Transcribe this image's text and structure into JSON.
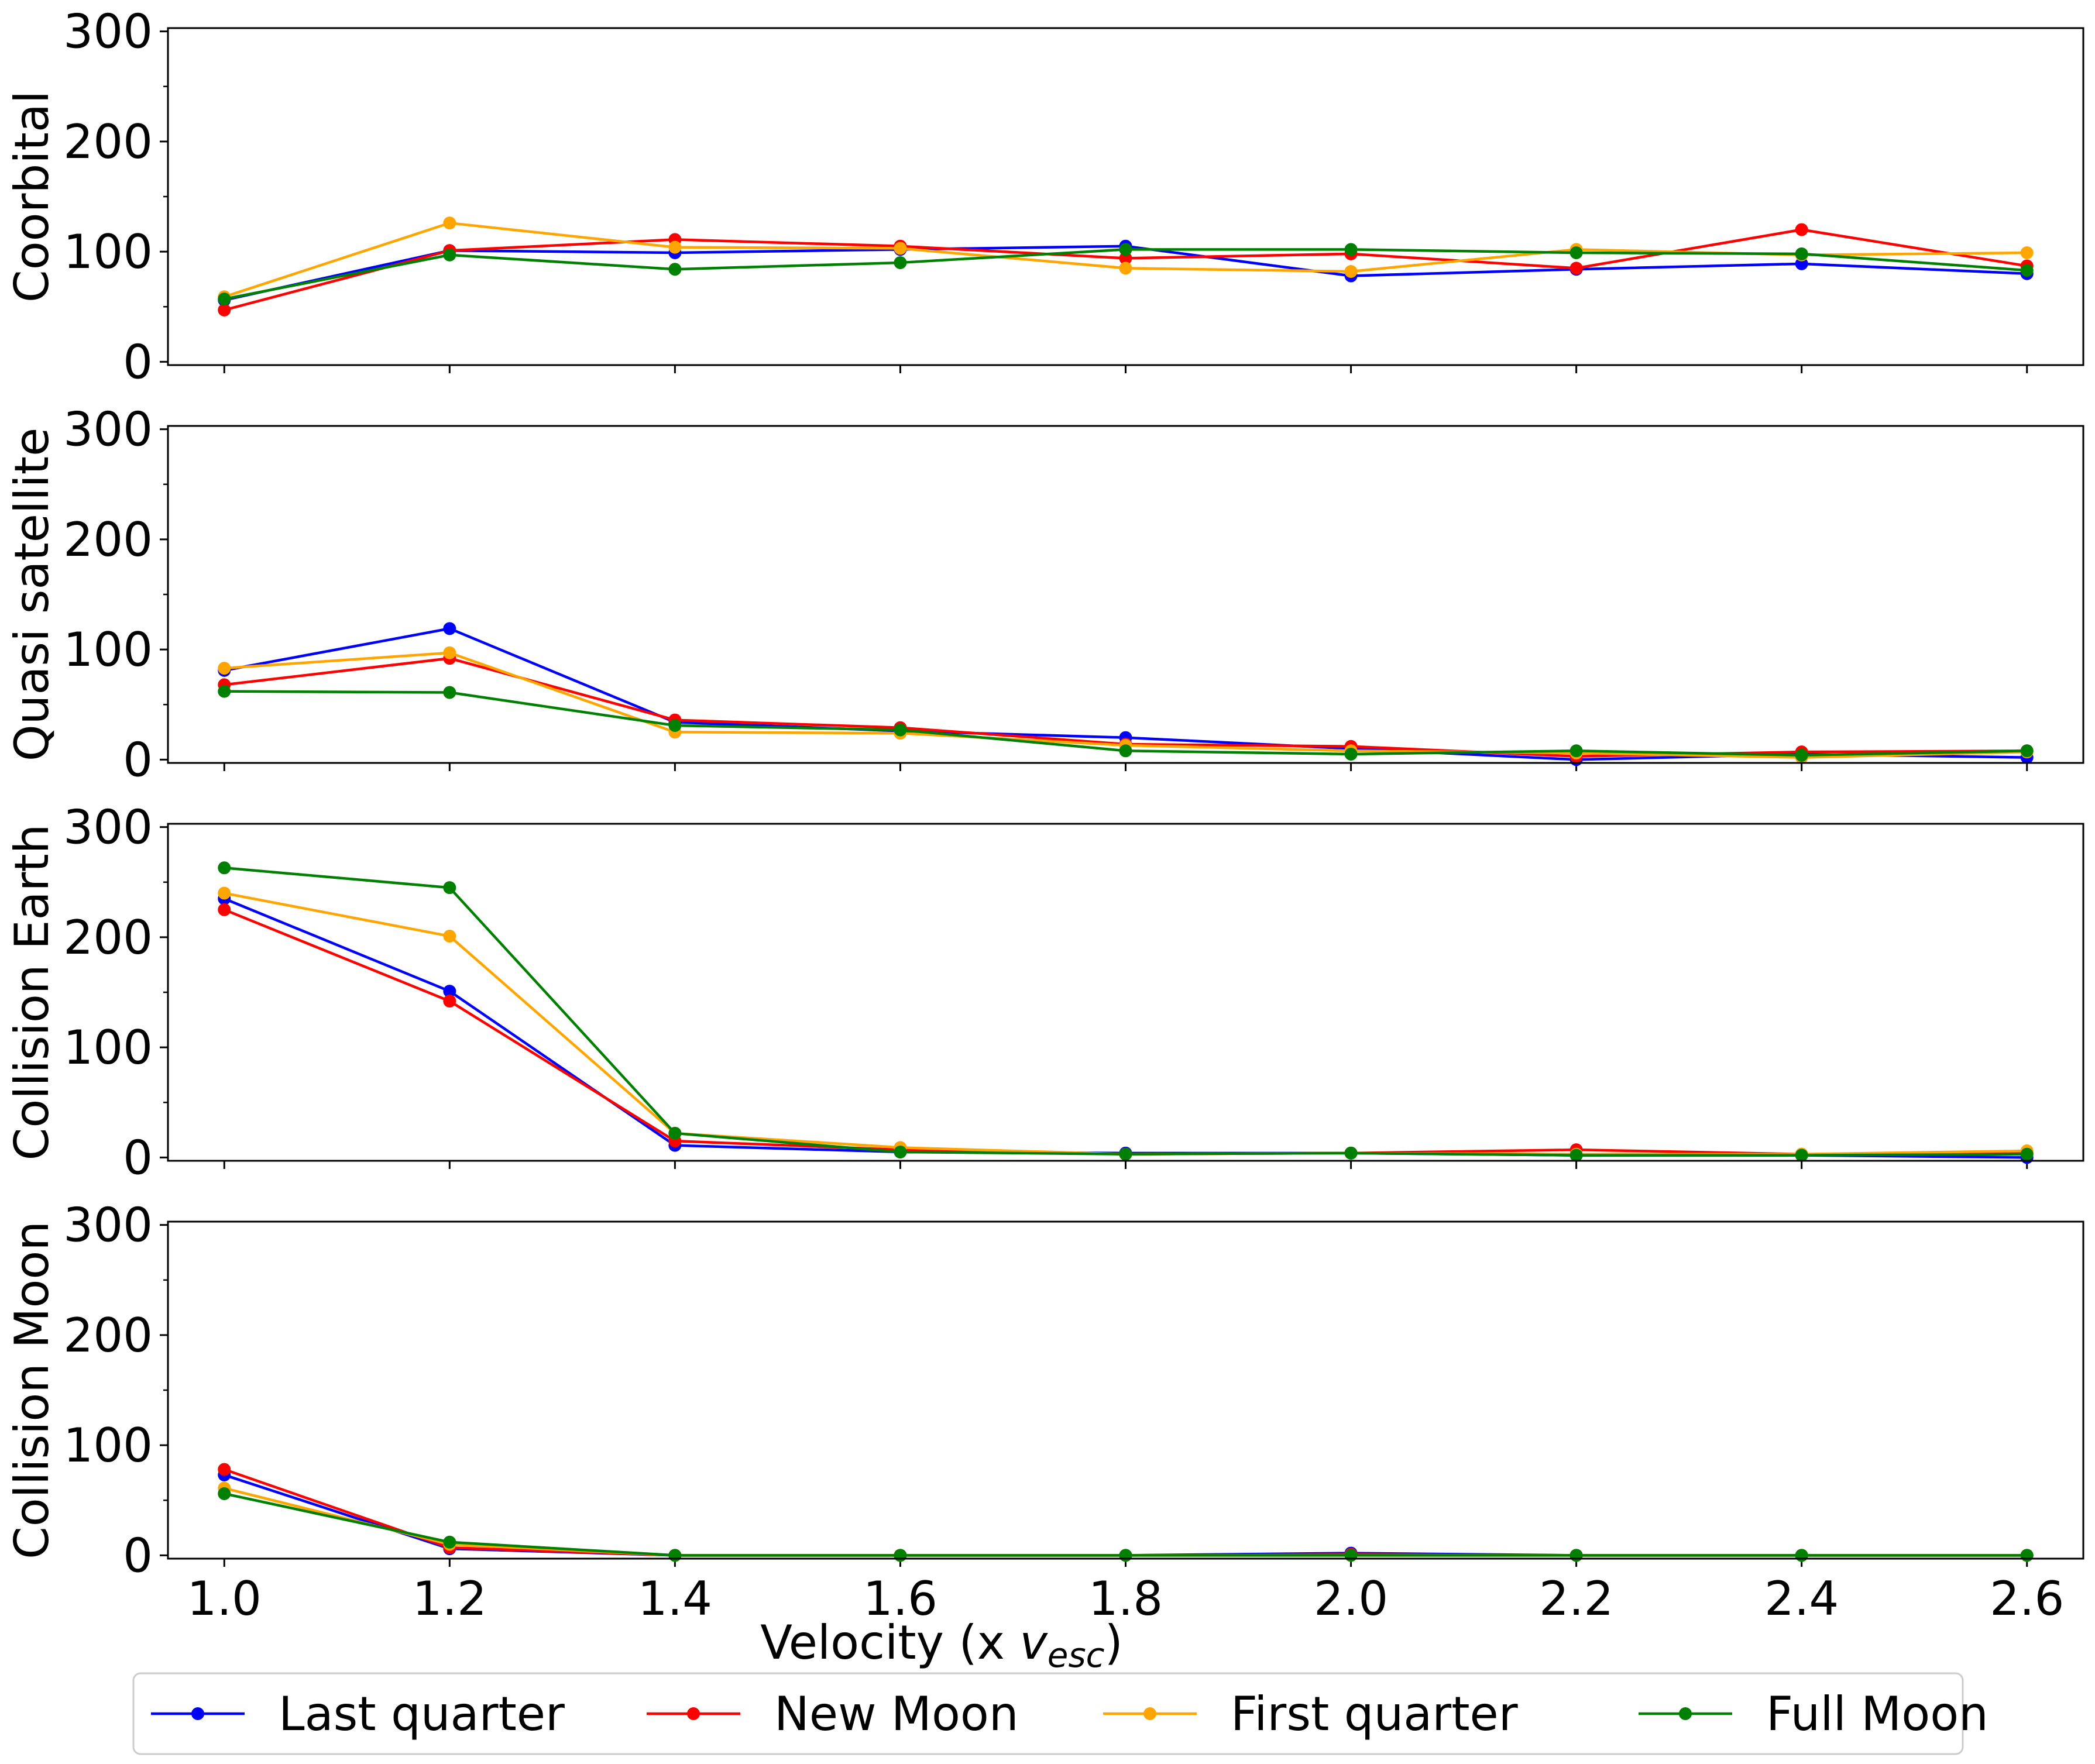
{
  "chart_data": {
    "type": "line",
    "xlabel": "Velocity (x ",
    "xlabel_var": "v",
    "xlabel_sub": "esc",
    "xlabel_end": ")",
    "x": [
      1.0,
      1.2,
      1.4,
      1.6,
      1.8,
      2.0,
      2.2,
      2.4,
      2.6
    ],
    "x_ticks": [
      "1.0",
      "1.2",
      "1.4",
      "1.6",
      "1.8",
      "2.0",
      "2.2",
      "2.4",
      "2.6"
    ],
    "xlim": [
      0.95,
      2.65
    ],
    "ylim": [
      -3,
      303
    ],
    "y_ticks": [
      "0",
      "100",
      "200",
      "300"
    ],
    "y_tick_values": [
      0,
      100,
      200,
      300
    ],
    "y_minor_tick_values": [
      50,
      150,
      250
    ],
    "grid": false,
    "legend_placement": "bottom-center",
    "series_colors": {
      "Last quarter": "#0000ff",
      "New Moon": "#ff0000",
      "First quarter": "#ffa500",
      "Full Moon": "#008000"
    },
    "legend": [
      "Last quarter",
      "New Moon",
      "First quarter",
      "Full Moon"
    ],
    "panels": [
      {
        "ylabel": "Coorbital",
        "series": [
          {
            "name": "Last quarter",
            "values": [
              56,
              101,
              99,
              102,
              105,
              78,
              84,
              89,
              80
            ]
          },
          {
            "name": "New Moon",
            "values": [
              47,
              101,
              111,
              105,
              94,
              98,
              85,
              120,
              87
            ]
          },
          {
            "name": "First quarter",
            "values": [
              59,
              126,
              104,
              103,
              85,
              82,
              102,
              97,
              99
            ]
          },
          {
            "name": "Full Moon",
            "values": [
              57,
              97,
              84,
              90,
              102,
              102,
              99,
              98,
              83
            ]
          }
        ]
      },
      {
        "ylabel": "Quasi satellite",
        "series": [
          {
            "name": "Last quarter",
            "values": [
              81,
              119,
              34,
              26,
              20,
              10,
              0,
              5,
              2
            ]
          },
          {
            "name": "New Moon",
            "values": [
              68,
              92,
              36,
              29,
              14,
              12,
              3,
              7,
              8
            ]
          },
          {
            "name": "First quarter",
            "values": [
              83,
              97,
              25,
              24,
              13,
              8,
              6,
              2,
              7
            ]
          },
          {
            "name": "Full Moon",
            "values": [
              62,
              61,
              31,
              27,
              8,
              5,
              8,
              4,
              8
            ]
          }
        ]
      },
      {
        "ylabel": "Collision Earth",
        "series": [
          {
            "name": "Last quarter",
            "values": [
              235,
              151,
              11,
              5,
              4,
              4,
              2,
              2,
              0
            ]
          },
          {
            "name": "New Moon",
            "values": [
              225,
              142,
              15,
              7,
              3,
              4,
              7,
              3,
              4
            ]
          },
          {
            "name": "First quarter",
            "values": [
              240,
              201,
              22,
              9,
              3,
              4,
              3,
              3,
              6
            ]
          },
          {
            "name": "Full Moon",
            "values": [
              263,
              245,
              22,
              5,
              3,
              4,
              2,
              2,
              3
            ]
          }
        ]
      },
      {
        "ylabel": "Collision Moon",
        "series": [
          {
            "name": "Last quarter",
            "values": [
              73,
              6,
              0,
              0,
              0,
              2,
              0,
              0,
              0
            ]
          },
          {
            "name": "New Moon",
            "values": [
              78,
              7,
              0,
              0,
              0,
              1,
              0,
              0,
              0
            ]
          },
          {
            "name": "First quarter",
            "values": [
              61,
              10,
              0,
              0,
              0,
              0,
              0,
              0,
              0
            ]
          },
          {
            "name": "Full Moon",
            "values": [
              56,
              12,
              0,
              0,
              0,
              0,
              0,
              0,
              0
            ]
          }
        ]
      }
    ]
  }
}
